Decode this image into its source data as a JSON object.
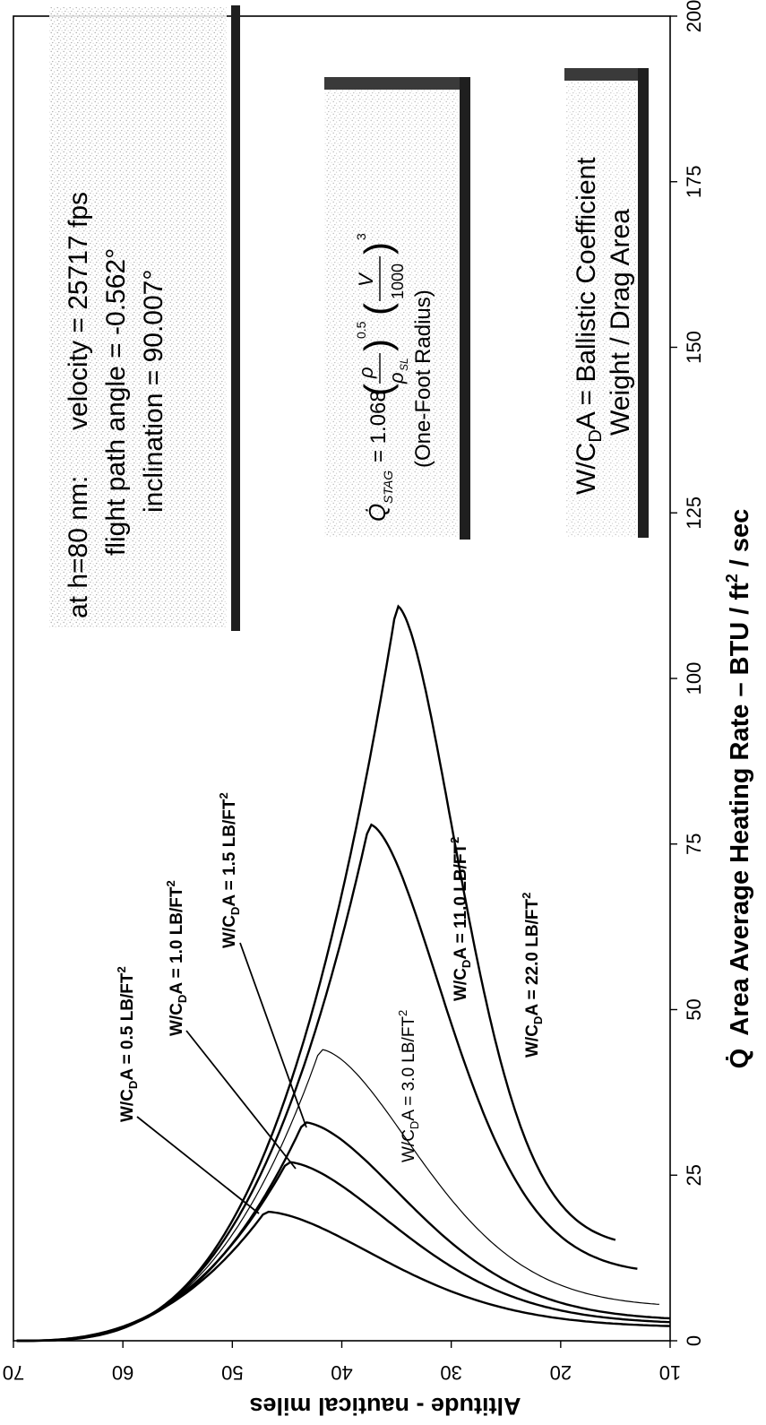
{
  "chart_data": {
    "type": "line",
    "x_axis": {
      "label": "Q̇  Area Average Heating Rate – BTU / ft² / sec",
      "label_main": "Area Average Heating Rate – BTU / ft",
      "label_exp": "2",
      "label_tail": " / sec",
      "label_symbol": "Q̇",
      "range": [
        0,
        200
      ],
      "ticks": [
        "0",
        "25",
        "50",
        "75",
        "100",
        "125",
        "150",
        "175",
        "200"
      ]
    },
    "y_axis": {
      "label": "Altitude - nautical miles",
      "range": [
        10,
        70
      ],
      "ticks": [
        "10",
        "20",
        "30",
        "40",
        "50",
        "60",
        "70"
      ]
    },
    "series": [
      {
        "name": "W/CDA = 0.5 LB/FT2",
        "peak": [
          19.5,
          47
        ],
        "bottom": [
          2,
          10
        ],
        "width": 2.4
      },
      {
        "name": "W/CDA = 1.0 LB/FT2",
        "peak": [
          27,
          45
        ],
        "bottom": [
          2.5,
          10
        ],
        "width": 2.4
      },
      {
        "name": "W/CDA = 1.5 LB/FT2",
        "peak": [
          33,
          43.5
        ],
        "bottom": [
          3,
          10
        ],
        "width": 2.4
      },
      {
        "name": "W/CDA = 3.0 LB/FT2",
        "peak": [
          44,
          42
        ],
        "bottom": [
          5,
          11
        ],
        "width": 1.2
      },
      {
        "name": "W/CDA = 11.0 LB/FT2",
        "peak": [
          78,
          37.5
        ],
        "bottom": [
          10,
          13
        ],
        "width": 2.4
      },
      {
        "name": "W/CDA = 22.0 LB/FT2",
        "peak": [
          111,
          35
        ],
        "bottom": [
          14,
          15
        ],
        "width": 2.4
      }
    ],
    "curve_labels": [
      {
        "pre": "W/C",
        "sub": "D",
        "post": "A = 0.5 LB/FT",
        "sup": "2"
      },
      {
        "pre": "W/C",
        "sub": "D",
        "post": "A = 1.0 LB/FT",
        "sup": "2"
      },
      {
        "pre": "W/C",
        "sub": "D",
        "post": "A = 1.5 LB/FT",
        "sup": "2"
      },
      {
        "pre": "W/C",
        "sub": "D",
        "post": "A = 3.0 LB/FT",
        "sup": "2"
      },
      {
        "pre": "W/C",
        "sub": "D",
        "post": "A = 11.0 LB/FT",
        "sup": "2"
      },
      {
        "pre": "W/C",
        "sub": "D",
        "post": "A = 22.0 LB/FT",
        "sup": "2"
      }
    ],
    "grid": false
  },
  "annotations": {
    "conditions_prefix": "at h=80 nm:",
    "velocity": "velocity = 25717 fps",
    "flight_path": "flight path angle = -0.562°",
    "inclination": "inclination = 90.007°",
    "formula_lhs": "Q̇",
    "formula_lhs_sub": "STAG",
    "formula_coef": "= 1.068",
    "formula_rho": "ρ",
    "formula_rho_sl": "ρ",
    "formula_rho_sl_sub": "SL",
    "formula_exp1": "0.5",
    "formula_v": "V",
    "formula_1000": "1000",
    "formula_exp2": "3",
    "formula_note": "(One-Foot Radius)",
    "ballistic_line1": "W/C",
    "ballistic_sub": "D",
    "ballistic_line1_rest": "A = Ballistic Coefficient",
    "ballistic_line2": "Weight / Drag Area"
  },
  "colors": {
    "ink": "#000000",
    "panel_stipple": "#b5b5b5",
    "panel_shadow": "#262626"
  }
}
